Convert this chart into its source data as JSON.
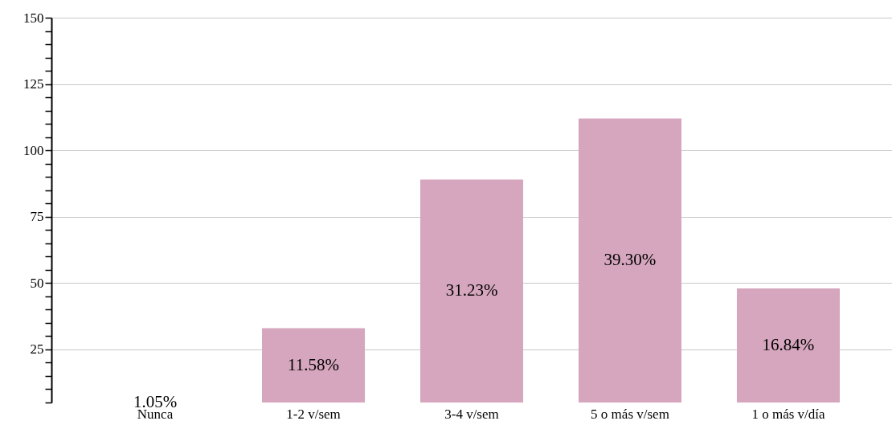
{
  "chart_data": {
    "type": "bar",
    "categories": [
      "Nunca",
      "1-2 v/sem",
      "3-4 v/sem",
      "5 o más v/sem",
      "1 o más v/día"
    ],
    "values": [
      null,
      33,
      89,
      112,
      48
    ],
    "annotations": [
      "1.05%",
      "11.58%",
      "31.23%",
      "39.30%",
      "16.84%"
    ],
    "color": "#d5a6bd",
    "ylim": [
      5,
      150
    ],
    "yticks": [
      {
        "value": 5,
        "label": null
      },
      {
        "value": 10,
        "label": null
      },
      {
        "value": 15,
        "label": null
      },
      {
        "value": 20,
        "label": null
      },
      25,
      {
        "value": 30,
        "label": null
      },
      {
        "value": 35,
        "label": null
      },
      {
        "value": 40,
        "label": null
      },
      {
        "value": 45,
        "label": null
      },
      50,
      {
        "value": 55,
        "label": null
      },
      {
        "value": 60,
        "label": null
      },
      {
        "value": 65,
        "label": null
      },
      {
        "value": 70,
        "label": null
      },
      75,
      {
        "value": 80,
        "label": null
      },
      {
        "value": 85,
        "label": null
      },
      {
        "value": 90,
        "label": null
      },
      {
        "value": 95,
        "label": null
      },
      100,
      {
        "value": 105,
        "label": null
      },
      {
        "value": 110,
        "label": null
      },
      {
        "value": 115,
        "label": null
      },
      {
        "value": 120,
        "label": null
      },
      125,
      {
        "value": 130,
        "label": null
      },
      {
        "value": 135,
        "label": null
      },
      {
        "value": 140,
        "label": null
      },
      {
        "value": 145,
        "label": null
      },
      150
    ],
    "grid": "y"
  }
}
